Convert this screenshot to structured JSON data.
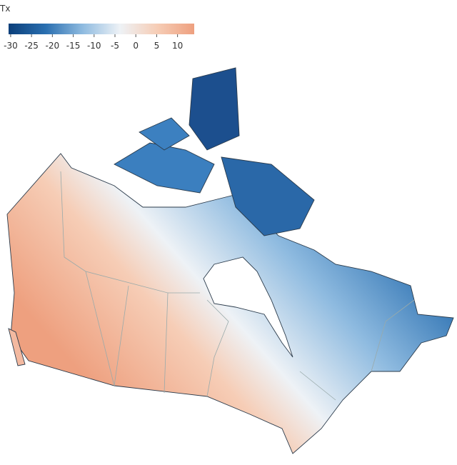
{
  "legend": {
    "title": "Tx",
    "range": [
      -30.5,
      14
    ],
    "ticks": [
      -30,
      -25,
      -20,
      -15,
      -10,
      -5,
      0,
      5,
      10
    ],
    "colors": [
      "#0b3f7a",
      "#2a6fb0",
      "#8fbbe0",
      "#eef2f6",
      "#f6cdb6",
      "#eea07f"
    ]
  }
}
